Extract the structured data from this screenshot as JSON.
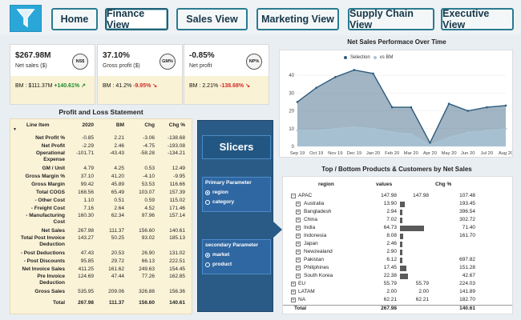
{
  "nav": {
    "buttons": [
      "Home",
      "Finance View",
      "Sales View",
      "Marketing View",
      "Supply Chain View",
      "Executive View"
    ]
  },
  "kpis": [
    {
      "value": "$267.98M",
      "label": "Net sales ($)",
      "badge": "NS$",
      "bm_prefix": "BM : $111.37M ",
      "bm_change": "+140.61%",
      "dir": "up"
    },
    {
      "value": "37.10%",
      "label": "Gross profit ($)",
      "badge": "GM%",
      "bm_prefix": "BM : 41.2% ",
      "bm_change": "-9.95%",
      "dir": "down"
    },
    {
      "value": "-0.85%",
      "label": "Net profit",
      "badge": "NP%",
      "bm_prefix": "BM : 2.21% ",
      "bm_change": "-138.68%",
      "dir": "down"
    }
  ],
  "pl": {
    "title": "Profit and Loss Statement",
    "headers": [
      "Line Item",
      "2020",
      "BM",
      "Chg",
      "Chg %"
    ],
    "rows": [
      {
        "name": "Net Profit %",
        "v": [
          "-0.85",
          "2.21",
          "-3.06",
          "-138.68"
        ]
      },
      {
        "name": "Net Profit",
        "v": [
          "-2.29",
          "2.46",
          "-4.75",
          "-193.08"
        ]
      },
      {
        "name": "Operational Expense",
        "v": [
          "-101.71",
          "-43.43",
          "-58.28",
          "-134.21"
        ]
      },
      {
        "name": "GM / Unit",
        "v": [
          "4.79",
          "4.25",
          "0.53",
          "12.49"
        ]
      },
      {
        "name": "Gross Margin %",
        "v": [
          "37.10",
          "41.20",
          "-4.10",
          "-9.95"
        ]
      },
      {
        "name": "Gross Margin",
        "v": [
          "99.42",
          "45.89",
          "53.53",
          "116.66"
        ]
      },
      {
        "name": "Total COGS",
        "v": [
          "168.56",
          "65.49",
          "103.07",
          "157.39"
        ]
      },
      {
        "name": "- Other Cost",
        "v": [
          "1.10",
          "0.51",
          "0.59",
          "115.02"
        ]
      },
      {
        "name": "- Freight Cost",
        "v": [
          "7.16",
          "2.64",
          "4.52",
          "171.46"
        ]
      },
      {
        "name": "- Manufacturing Cost",
        "v": [
          "160.30",
          "62.34",
          "97.96",
          "157.14"
        ]
      },
      {
        "name": "Net Sales",
        "v": [
          "267.98",
          "111.37",
          "156.60",
          "140.61"
        ]
      },
      {
        "name": "Total Post Invoice Deduction",
        "v": [
          "143.27",
          "50.25",
          "93.02",
          "185.13"
        ]
      },
      {
        "name": "- Post Deductions",
        "v": [
          "47.43",
          "20.53",
          "26.90",
          "131.02"
        ]
      },
      {
        "name": "- Post Discounts",
        "v": [
          "95.85",
          "29.72",
          "66.13",
          "222.51"
        ]
      },
      {
        "name": "Net Invoice Sales",
        "v": [
          "411.25",
          "161.62",
          "249.63",
          "154.45"
        ]
      },
      {
        "name": "Pre Invoice Deduction",
        "v": [
          "124.69",
          "47.44",
          "77.26",
          "162.85"
        ]
      },
      {
        "name": "Gross Sales",
        "v": [
          "535.95",
          "209.06",
          "326.88",
          "156.36"
        ]
      },
      {
        "name": "Total",
        "v": [
          "267.98",
          "111.37",
          "156.60",
          "140.61"
        ]
      }
    ]
  },
  "slicers": {
    "title": "Slicers",
    "primary_label": "Primary Parameter",
    "primary_options": [
      "region",
      "category"
    ],
    "secondary_label": "secondary Parameter",
    "secondary_options": [
      "market",
      "product"
    ]
  },
  "chart_data": {
    "type": "area",
    "title": "Net Sales Performace Over Time",
    "categories": [
      "Sep 19",
      "Oct 19",
      "Nov 19",
      "Dec 19",
      "Jan 20",
      "Feb 20",
      "Mar 20",
      "Apr 20",
      "May 20",
      "Jun 20",
      "Jul 20",
      "Aug 20"
    ],
    "series": [
      {
        "name": "Selection",
        "values": [
          25,
          33,
          39,
          43,
          41,
          22,
          22,
          2,
          24,
          20,
          22,
          23
        ],
        "color": "#2f5b7d"
      },
      {
        "name": "vs BM",
        "values": [
          9,
          9,
          10,
          11,
          10,
          8,
          7,
          1,
          5,
          8,
          9,
          10
        ],
        "color": "#a9c4d6"
      }
    ],
    "yticks": [
      0,
      10,
      20,
      30,
      40
    ],
    "ylim": [
      0,
      45
    ]
  },
  "top_bottom": {
    "title": "Top / Bottom Products & Customers by Net Sales",
    "headers": [
      "region",
      "values",
      "Chg %"
    ],
    "rows": [
      {
        "name": "APAC",
        "v1": "147.98",
        "v2": "147.98",
        "v3": "107.48",
        "level": 0,
        "exp": "−"
      },
      {
        "name": "Australia",
        "v1": "13.90",
        "v2": "",
        "v3": "193.45",
        "level": 1,
        "exp": "+",
        "bar": 13.9
      },
      {
        "name": "Bangladesh",
        "v1": "2.94",
        "v2": "",
        "v3": "396.54",
        "level": 1,
        "exp": "+",
        "bar": 2.94
      },
      {
        "name": "China",
        "v1": "7.02",
        "v2": "",
        "v3": "302.72",
        "level": 1,
        "exp": "+",
        "bar": 7.02
      },
      {
        "name": "India",
        "v1": "64.73",
        "v2": "",
        "v3": "71.40",
        "level": 1,
        "exp": "+",
        "bar": 64.73
      },
      {
        "name": "Indonesia",
        "v1": "8.08",
        "v2": "",
        "v3": "161.70",
        "level": 1,
        "exp": "+",
        "bar": 8.08
      },
      {
        "name": "Japan",
        "v1": "2.46",
        "v2": "",
        "v3": "",
        "level": 1,
        "exp": "+",
        "bar": 2.46
      },
      {
        "name": "Newzealand",
        "v1": "2.90",
        "v2": "",
        "v3": "",
        "level": 1,
        "exp": "+",
        "bar": 2.9
      },
      {
        "name": "Pakistan",
        "v1": "6.12",
        "v2": "",
        "v3": "697.82",
        "level": 1,
        "exp": "+",
        "bar": 6.12
      },
      {
        "name": "Philiphines",
        "v1": "17.45",
        "v2": "",
        "v3": "151.28",
        "level": 1,
        "exp": "+",
        "bar": 17.45
      },
      {
        "name": "South Korea",
        "v1": "22.38",
        "v2": "",
        "v3": "42.67",
        "level": 1,
        "exp": "+",
        "bar": 22.38
      },
      {
        "name": "EU",
        "v1": "55.79",
        "v2": "55.79",
        "v3": "224.03",
        "level": 0,
        "exp": "+"
      },
      {
        "name": "LATAM",
        "v1": "2.00",
        "v2": "2.00",
        "v3": "141.89",
        "level": 0,
        "exp": "+"
      },
      {
        "name": "NA",
        "v1": "62.21",
        "v2": "62.21",
        "v3": "182.70",
        "level": 0,
        "exp": "+"
      },
      {
        "name": "Total",
        "v1": "267.98",
        "v2": "",
        "v3": "140.61",
        "level": 0,
        "exp": "",
        "total": true
      }
    ]
  }
}
